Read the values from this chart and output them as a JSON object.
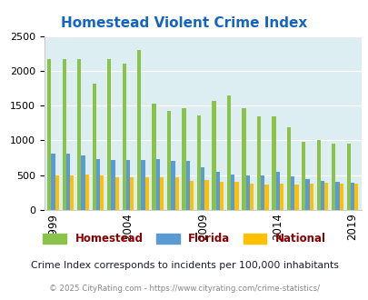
{
  "title": "Homestead Violent Crime Index",
  "subtitle": "Crime Index corresponds to incidents per 100,000 inhabitants",
  "footer": "© 2025 CityRating.com - https://www.cityrating.com/crime-statistics/",
  "years": [
    1999,
    2000,
    2001,
    2002,
    2003,
    2004,
    2005,
    2006,
    2007,
    2008,
    2009,
    2010,
    2011,
    2012,
    2013,
    2014,
    2015,
    2016,
    2017,
    2018,
    2019
  ],
  "homestead": [
    2170,
    2165,
    2165,
    1810,
    2165,
    2105,
    2300,
    1530,
    1420,
    1460,
    1360,
    1570,
    1650,
    1460,
    1350,
    1340,
    1195,
    980,
    1010,
    960,
    960
  ],
  "florida": [
    810,
    810,
    790,
    730,
    720,
    720,
    720,
    730,
    700,
    700,
    615,
    545,
    505,
    500,
    490,
    545,
    480,
    445,
    415,
    410,
    390
  ],
  "national": [
    500,
    500,
    505,
    495,
    475,
    465,
    465,
    470,
    465,
    415,
    430,
    405,
    405,
    385,
    370,
    375,
    370,
    380,
    390,
    380,
    380
  ],
  "xtick_years": [
    1999,
    2004,
    2009,
    2014,
    2019
  ],
  "ylim": [
    0,
    2500
  ],
  "yticks": [
    0,
    500,
    1000,
    1500,
    2000,
    2500
  ],
  "color_homestead": "#8bc34a",
  "color_florida": "#5b9bd5",
  "color_national": "#ffc000",
  "bg_color": "#ddeef3",
  "title_color": "#1565c0",
  "subtitle_color": "#1a1a2e",
  "footer_color": "#888888",
  "legend_label_color": "#8b0000"
}
